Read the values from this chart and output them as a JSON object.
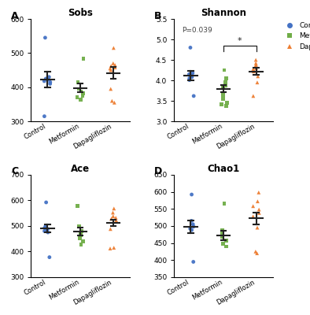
{
  "panels": [
    {
      "label": "A",
      "title": "Sobs",
      "ylim": [
        300,
        600
      ],
      "yticks": [
        300,
        400,
        500,
        600
      ],
      "groups": {
        "Control": [
          545,
          430,
          425,
          422,
          418,
          415,
          410,
          315
        ],
        "Metformin": [
          483,
          415,
          395,
          388,
          383,
          375,
          370,
          363
        ],
        "Dapagliflozin": [
          515,
          470,
          465,
          462,
          458,
          455,
          450,
          395,
          360,
          355
        ]
      },
      "means": [
        423,
        398,
        442
      ],
      "sems": [
        23,
        12,
        17
      ],
      "significance": null
    },
    {
      "label": "B",
      "title": "Shannon",
      "ylim": [
        3.0,
        5.5
      ],
      "yticks": [
        3.0,
        3.5,
        4.0,
        4.5,
        5.0,
        5.5
      ],
      "groups": {
        "Control": [
          4.8,
          4.18,
          4.15,
          4.12,
          4.08,
          4.05,
          4.01,
          3.62
        ],
        "Metformin": [
          4.25,
          4.05,
          3.95,
          3.88,
          3.82,
          3.65,
          3.55,
          3.45,
          3.42,
          3.38
        ],
        "Dapagliflozin": [
          4.5,
          4.42,
          4.38,
          4.35,
          4.3,
          4.28,
          4.22,
          4.1,
          3.95,
          3.62
        ]
      },
      "means": [
        4.12,
        3.8,
        4.22
      ],
      "sems": [
        0.11,
        0.09,
        0.08
      ],
      "significance": {
        "groups": [
          1,
          2
        ],
        "text": "*",
        "p_text": "P=0.039"
      }
    },
    {
      "label": "C",
      "title": "Ace",
      "ylim": [
        300,
        700
      ],
      "yticks": [
        300,
        400,
        500,
        600,
        700
      ],
      "groups": {
        "Control": [
          592,
          500,
          492,
          488,
          485,
          480,
          475,
          378
        ],
        "Metformin": [
          578,
          498,
          480,
          472,
          465,
          452,
          440,
          428
        ],
        "Dapagliflozin": [
          568,
          552,
          538,
          532,
          528,
          522,
          488,
          415,
          412
        ]
      },
      "means": [
        490,
        478,
        512
      ],
      "sems": [
        16,
        15,
        13
      ],
      "significance": null
    },
    {
      "label": "D",
      "title": "Chao1",
      "ylim": [
        350,
        650
      ],
      "yticks": [
        350,
        400,
        450,
        500,
        550,
        600,
        650
      ],
      "groups": {
        "Control": [
          592,
          515,
          505,
          498,
          492,
          488,
          395
        ],
        "Metformin": [
          565,
          488,
          475,
          468,
          458,
          448,
          440
        ],
        "Dapagliflozin": [
          598,
          572,
          558,
          548,
          538,
          528,
          495,
          425,
          420
        ]
      },
      "means": [
        498,
        472,
        522
      ],
      "sems": [
        19,
        14,
        17
      ],
      "significance": null
    }
  ],
  "colors": {
    "Control": "#4472C4",
    "Metformin": "#70AD47",
    "Dapagliflozin": "#ED7D31"
  },
  "markers": {
    "Control": "o",
    "Metformin": "s",
    "Dapagliflozin": "^"
  },
  "legend_labels": [
    "Control",
    "Metformin",
    "Dapagliflozin"
  ],
  "bg_color": "#FFFFFF"
}
